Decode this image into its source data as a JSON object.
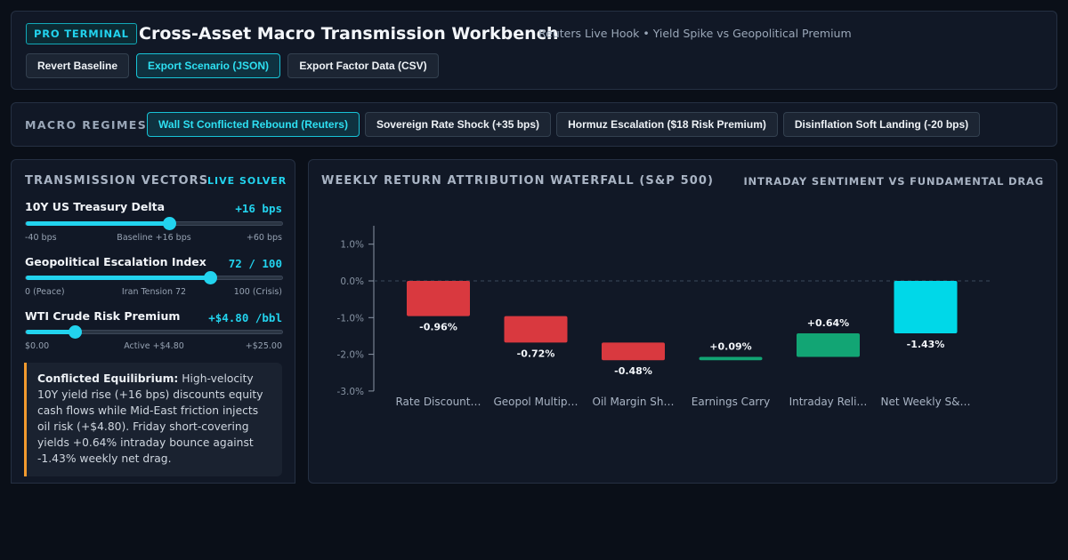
{
  "header": {
    "badge": "PRO TERMINAL",
    "title": "Cross-Asset Macro Transmission Workbench",
    "subtitle": "Reuters Live Hook • Yield Spike vs Geopolitical Premium",
    "buttons": [
      "Revert Baseline",
      "Export Scenario (JSON)",
      "Export Factor Data (CSV)"
    ]
  },
  "regimes": {
    "label": "MACRO REGIMES:",
    "items": [
      {
        "label": "Wall St Conflicted Rebound (Reuters)",
        "active": true
      },
      {
        "label": "Sovereign Rate Shock (+35 bps)",
        "active": false
      },
      {
        "label": "Hormuz Escalation ($18 Risk Premium)",
        "active": false
      },
      {
        "label": "Disinflation Soft Landing (-20 bps)",
        "active": false
      }
    ]
  },
  "vectors": {
    "title": "TRANSMISSION VECTORS",
    "tag": "LIVE SOLVER",
    "controls": [
      {
        "label": "10Y US Treasury Delta",
        "value": "+16 bps",
        "level": 0.56,
        "min_label": "-40 bps",
        "mid_label": "Baseline +16 bps",
        "max_label": "+60 bps"
      },
      {
        "label": "Geopolitical Escalation Index",
        "value": "72 / 100",
        "level": 0.72,
        "min_label": "0 (Peace)",
        "mid_label": "Iran Tension 72",
        "max_label": "100 (Crisis)"
      },
      {
        "label": "WTI Crude Risk Premium",
        "value": "+$4.80 /bbl",
        "level": 0.192,
        "min_label": "$0.00",
        "mid_label": "Active +$4.80",
        "max_label": "+$25.00"
      }
    ],
    "note_title": "Conflicted Equilibrium:",
    "note_text": " High-velocity 10Y yield rise (+16 bps) discounts equity cash flows while Mid-East friction injects oil risk (+$4.80). Friday short-covering yields +0.64% intraday bounce against -1.43% weekly net drag."
  },
  "chart_panel": {
    "title": "WEEKLY RETURN ATTRIBUTION WATERFALL (S&P 500)",
    "right_label": "INTRADAY SENTIMENT VS FUNDAMENTAL DRAG"
  },
  "chart_data": {
    "type": "bar",
    "subtype": "waterfall",
    "title": "WEEKLY RETURN ATTRIBUTION WATERFALL (S&P 500)",
    "categories": [
      "Rate Discount…",
      "Geopol Multip…",
      "Oil Margin Sh…",
      "Earnings Carry",
      "Intraday Reli…",
      "Net Weekly S&…"
    ],
    "values": [
      -0.96,
      -0.72,
      -0.48,
      0.09,
      0.64,
      -1.43
    ],
    "value_labels": [
      "-0.96%",
      "-0.72%",
      "-0.48%",
      "+0.09%",
      "+0.64%",
      "-1.43%"
    ],
    "is_total": [
      false,
      false,
      false,
      false,
      false,
      true
    ],
    "yticks": [
      "1.0%",
      "0.0%",
      "-1.0%",
      "-2.0%",
      "-3.0%"
    ],
    "ylim": [
      -3.0,
      1.5
    ],
    "grid": false,
    "zero_line": "dashed",
    "colors": {
      "negative": "#d9393f",
      "positive": "#12a574",
      "total": "#00d8e8"
    }
  },
  "colors": {
    "accent": "#22d3ee",
    "warning_border": "#f29a2e",
    "background": "#0a0f18",
    "panel": "#111826"
  }
}
